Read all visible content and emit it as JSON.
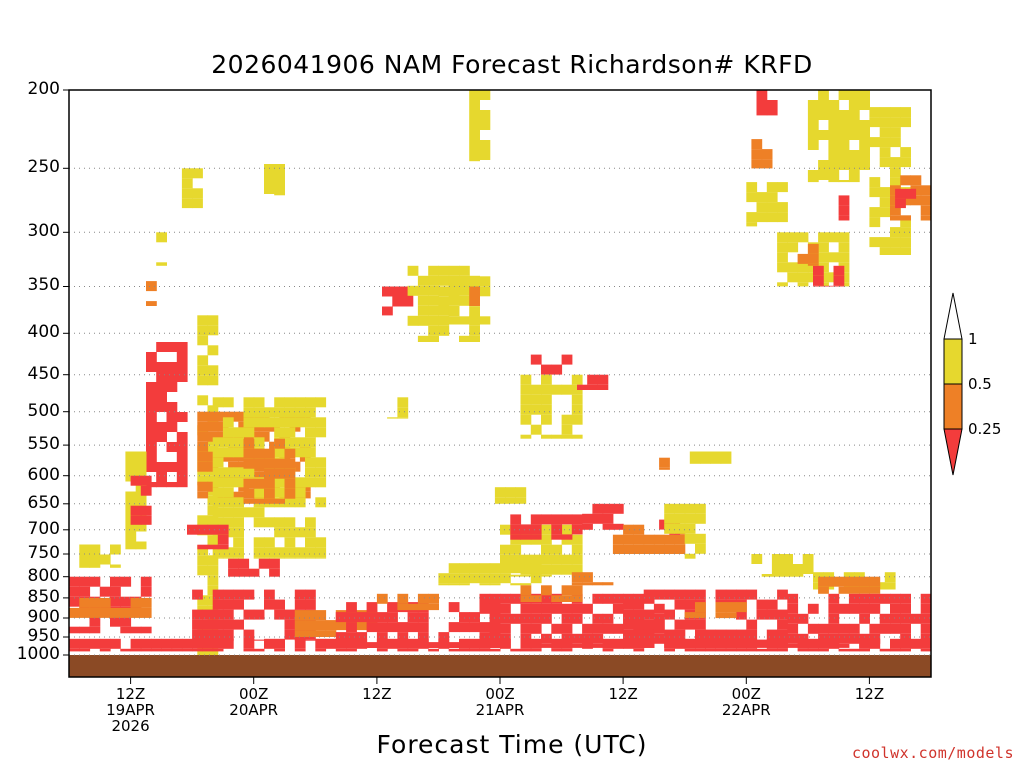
{
  "chart_data": {
    "type": "heatmap",
    "title": "2026041906 NAM Forecast Richardson# KRFD",
    "xlabel": "Forecast Time (UTC)",
    "ylabel": "",
    "y_axis": {
      "scale": "log",
      "reversed": true,
      "range": [
        1000,
        200
      ],
      "ticks": [
        200,
        250,
        300,
        350,
        400,
        450,
        500,
        550,
        600,
        650,
        700,
        750,
        800,
        850,
        900,
        950,
        1000
      ]
    },
    "x_axis": {
      "range_hours": [
        0,
        84
      ],
      "ticks": [
        {
          "hour": 6,
          "lines": [
            "12Z",
            "19APR",
            "2026"
          ]
        },
        {
          "hour": 18,
          "lines": [
            "00Z",
            "20APR"
          ]
        },
        {
          "hour": 30,
          "lines": [
            "12Z"
          ]
        },
        {
          "hour": 42,
          "lines": [
            "00Z",
            "21APR"
          ]
        },
        {
          "hour": 54,
          "lines": [
            "12Z"
          ]
        },
        {
          "hour": 66,
          "lines": [
            "00Z",
            "22APR"
          ]
        },
        {
          "hour": 78,
          "lines": [
            "12Z"
          ]
        }
      ]
    },
    "legend": {
      "labels": [
        "1",
        "0.5",
        "0.25"
      ],
      "bins": [
        {
          "range": "0.5-1",
          "color": "#e6d82e"
        },
        {
          "range": "0.25-0.5",
          "color": "#ee8026"
        },
        {
          "range": "<0.25",
          "color": "#f33c3c"
        }
      ]
    },
    "colors": {
      "low": "#f33c3c",
      "mid": "#ee8026",
      "high": "#e6d82e",
      "ground": "#8b4a25"
    },
    "regions": [
      {
        "bin": "high",
        "t": [
          12.5,
          14.5
        ],
        "p": [
          380,
          1000
        ]
      },
      {
        "bin": "low",
        "t": [
          7.5,
          11.5
        ],
        "p": [
          410,
          620
        ]
      },
      {
        "bin": "high",
        "t": [
          5.5,
          7.5
        ],
        "p": [
          560,
          740
        ]
      },
      {
        "bin": "low",
        "t": [
          6.0,
          8.0
        ],
        "p": [
          600,
          690
        ]
      },
      {
        "bin": "mid",
        "t": [
          12.5,
          23.5
        ],
        "p": [
          500,
          640
        ]
      },
      {
        "bin": "high",
        "t": [
          14.0,
          25.0
        ],
        "p": [
          480,
          760
        ]
      },
      {
        "bin": "mid",
        "t": [
          17.0,
          22.0
        ],
        "p": [
          540,
          650
        ]
      },
      {
        "bin": "low",
        "t": [
          11.5,
          15.0
        ],
        "p": [
          690,
          740
        ]
      },
      {
        "bin": "low",
        "t": [
          15.5,
          20.5
        ],
        "p": [
          760,
          800
        ]
      },
      {
        "bin": "high",
        "t": [
          1.0,
          5.0
        ],
        "p": [
          730,
          780
        ]
      },
      {
        "bin": "high",
        "t": [
          19.0,
          21.0
        ],
        "p": [
          240,
          270
        ]
      },
      {
        "bin": "high",
        "t": [
          11.0,
          13.0
        ],
        "p": [
          250,
          280
        ]
      },
      {
        "bin": "high",
        "t": [
          8.5,
          9.5
        ],
        "p": [
          300,
          330
        ]
      },
      {
        "bin": "mid",
        "t": [
          7.5,
          8.5
        ],
        "p": [
          335,
          370
        ]
      },
      {
        "bin": "low",
        "t": [
          30.5,
          33.0
        ],
        "p": [
          350,
          380
        ]
      },
      {
        "bin": "high",
        "t": [
          33.0,
          40.0
        ],
        "p": [
          330,
          410
        ]
      },
      {
        "bin": "high",
        "t": [
          36.0,
          41.0
        ],
        "p": [
          340,
          390
        ]
      },
      {
        "bin": "mid",
        "t": [
          38.0,
          39.5
        ],
        "p": [
          350,
          370
        ]
      },
      {
        "bin": "high",
        "t": [
          39.0,
          41.0
        ],
        "p": [
          200,
          245
        ]
      },
      {
        "bin": "high",
        "t": [
          31.0,
          33.0
        ],
        "p": [
          480,
          510
        ]
      },
      {
        "bin": "low",
        "t": [
          45.0,
          49.0
        ],
        "p": [
          425,
          450
        ]
      },
      {
        "bin": "high",
        "t": [
          44.0,
          50.0
        ],
        "p": [
          450,
          540
        ]
      },
      {
        "bin": "low",
        "t": [
          49.5,
          52.0
        ],
        "p": [
          450,
          470
        ]
      },
      {
        "bin": "high",
        "t": [
          60.5,
          64.0
        ],
        "p": [
          560,
          580
        ]
      },
      {
        "bin": "mid",
        "t": [
          57.5,
          58.5
        ],
        "p": [
          570,
          590
        ]
      },
      {
        "bin": "high",
        "t": [
          41.5,
          44.0
        ],
        "p": [
          620,
          650
        ]
      },
      {
        "bin": "high",
        "t": [
          42.0,
          50.0
        ],
        "p": [
          690,
          800
        ]
      },
      {
        "bin": "low",
        "t": [
          43.0,
          50.0
        ],
        "p": [
          670,
          720
        ]
      },
      {
        "bin": "low",
        "t": [
          50.0,
          54.0
        ],
        "p": [
          650,
          700
        ]
      },
      {
        "bin": "mid",
        "t": [
          53.0,
          60.0
        ],
        "p": [
          690,
          750
        ]
      },
      {
        "bin": "low",
        "t": [
          57.5,
          59.5
        ],
        "p": [
          680,
          710
        ]
      },
      {
        "bin": "high",
        "t": [
          58.0,
          62.0
        ],
        "p": [
          650,
          760
        ]
      },
      {
        "bin": "mid",
        "t": [
          49.0,
          53.0
        ],
        "p": [
          790,
          820
        ]
      },
      {
        "bin": "high",
        "t": [
          36.0,
          46.0
        ],
        "p": [
          770,
          820
        ]
      },
      {
        "bin": "high",
        "t": [
          65.5,
          72.5
        ],
        "p": [
          750,
          800
        ]
      },
      {
        "bin": "high",
        "t": [
          72.0,
          78.0
        ],
        "p": [
          200,
          260
        ]
      },
      {
        "bin": "mid",
        "t": [
          66.5,
          68.0
        ],
        "p": [
          230,
          250
        ]
      },
      {
        "bin": "low",
        "t": [
          67.0,
          69.0
        ],
        "p": [
          200,
          215
        ]
      },
      {
        "bin": "high",
        "t": [
          66.0,
          69.5
        ],
        "p": [
          260,
          295
        ]
      },
      {
        "bin": "high",
        "t": [
          69.0,
          75.5
        ],
        "p": [
          300,
          350
        ]
      },
      {
        "bin": "low",
        "t": [
          72.5,
          75.0
        ],
        "p": [
          330,
          350
        ]
      },
      {
        "bin": "mid",
        "t": [
          71.0,
          73.0
        ],
        "p": [
          310,
          330
        ]
      },
      {
        "bin": "low",
        "t": [
          75.0,
          76.0
        ],
        "p": [
          270,
          290
        ]
      },
      {
        "bin": "high",
        "t": [
          78.0,
          82.0
        ],
        "p": [
          210,
          320
        ]
      },
      {
        "bin": "mid",
        "t": [
          80.0,
          84.0
        ],
        "p": [
          255,
          290
        ]
      },
      {
        "bin": "low",
        "t": [
          80.5,
          82.0
        ],
        "p": [
          265,
          280
        ]
      },
      {
        "bin": "high",
        "t": [
          72.5,
          80.0
        ],
        "p": [
          790,
          830
        ]
      },
      {
        "bin": "mid",
        "t": [
          73.0,
          79.0
        ],
        "p": [
          800,
          840
        ]
      },
      {
        "bin": "low",
        "t": [
          0.0,
          8.0
        ],
        "p": [
          800,
          940
        ]
      },
      {
        "bin": "mid",
        "t": [
          0.0,
          8.0
        ],
        "p": [
          850,
          900
        ]
      },
      {
        "bin": "low",
        "t": [
          12.0,
          24.0
        ],
        "p": [
          830,
          960
        ]
      },
      {
        "bin": "mid",
        "t": [
          22.0,
          30.0
        ],
        "p": [
          880,
          950
        ]
      },
      {
        "bin": "low",
        "t": [
          26.0,
          42.0
        ],
        "p": [
          860,
          980
        ]
      },
      {
        "bin": "mid",
        "t": [
          30.0,
          36.0
        ],
        "p": [
          840,
          880
        ]
      },
      {
        "bin": "low",
        "t": [
          40.0,
          58.0
        ],
        "p": [
          840,
          980
        ]
      },
      {
        "bin": "mid",
        "t": [
          44.0,
          50.0
        ],
        "p": [
          820,
          860
        ]
      },
      {
        "bin": "low",
        "t": [
          54.0,
          70.0
        ],
        "p": [
          830,
          980
        ]
      },
      {
        "bin": "mid",
        "t": [
          60.0,
          66.0
        ],
        "p": [
          860,
          900
        ]
      },
      {
        "bin": "low",
        "t": [
          70.0,
          84.0
        ],
        "p": [
          840,
          980
        ]
      },
      {
        "bin": "low",
        "t": [
          0.0,
          84.0
        ],
        "p": [
          955,
          990
        ]
      }
    ]
  },
  "credit": "coolwx.com/models"
}
